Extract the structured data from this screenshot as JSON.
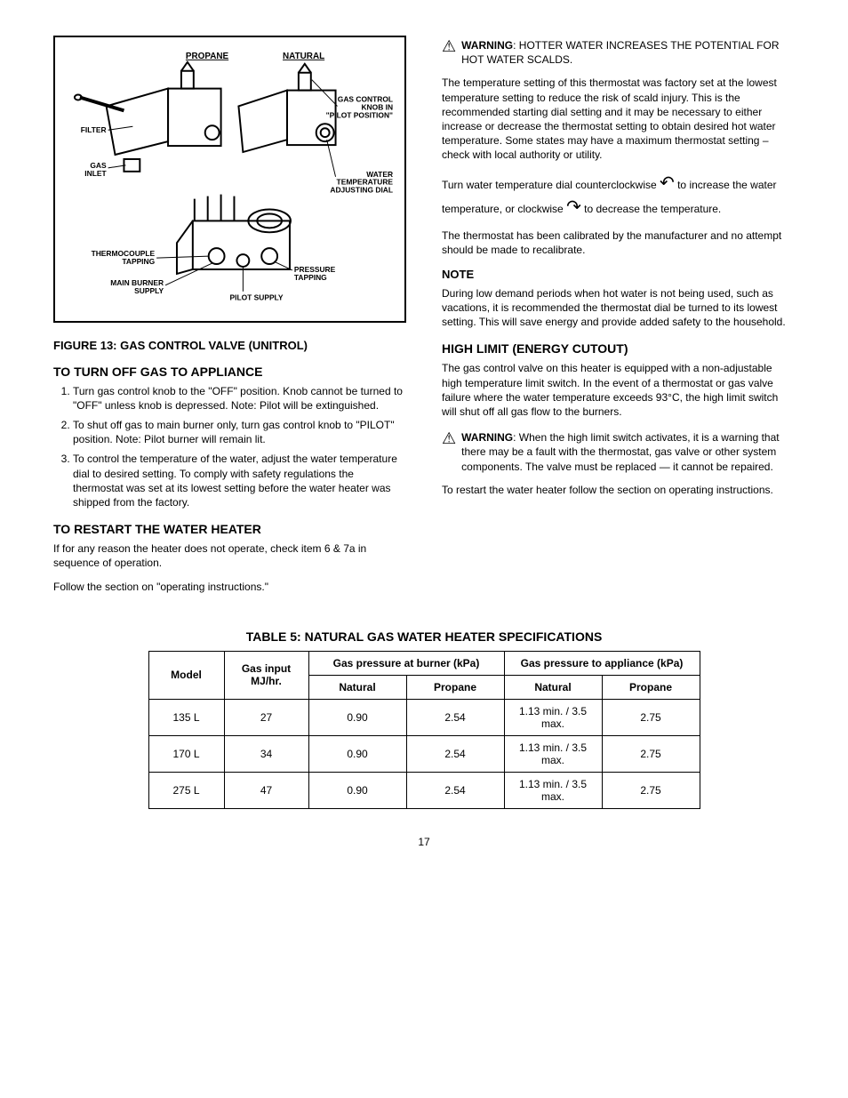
{
  "diagram": {
    "title_left": "PROPANE",
    "title_right": "NATURAL",
    "labels": {
      "filter": "FILTER",
      "gas_inlet": "GAS\nINLET",
      "knob": "GAS CONTROL\nKNOB IN\n\"PILOT POSITION\"",
      "dial": "WATER\nTEMPERATURE\nADJUSTING DIAL",
      "tc": "THERMOCOUPLE\nTAPPING",
      "burner": "MAIN BURNER\nSUPPLY",
      "pilot": "PILOT SUPPLY",
      "pressure": "PRESSURE\nTAPPING"
    }
  },
  "figure_caption": "FIGURE 13: GAS CONTROL VALVE (UNITROL)",
  "left_heading": "TO TURN OFF GAS TO APPLIANCE",
  "left_steps": [
    "Turn gas control knob to the \"OFF\" position. Knob cannot be turned to \"OFF\" unless knob is depressed. Note: Pilot will be extinguished.",
    "To shut off gas to main burner only, turn gas control knob to \"PILOT\" position. Note: Pilot burner will remain lit.",
    "To control the temperature of the water, adjust the water temperature dial to desired setting. To comply with safety regulations the thermostat was set at its lowest setting before the water heater was shipped from the factory."
  ],
  "left_heading2": "TO RESTART THE WATER HEATER",
  "left_p1": "If for any reason the heater does not operate, check item 6 & 7a in sequence of operation.",
  "left_p2": "Follow the section on \"operating instructions.\"",
  "right_warn1_label": "WARNING",
  "right_warn1_body": ": HOTTER WATER INCREASES THE POTENTIAL FOR HOT WATER SCALDS.",
  "right_p1": "The temperature setting of this thermostat was factory set at the lowest temperature setting to reduce the risk of scald injury. This is the recommended starting dial setting and it may be necessary to either increase or decrease the thermostat setting to obtain desired hot water temperature. Some states may have a maximum thermostat setting – check with local authority or utility.",
  "right_p2_1": "Turn water temperature dial counterclockwise ",
  "right_p2_2": " to increase the water temperature, or clockwise ",
  "right_p2_3": " to decrease the temperature.",
  "right_p3": "The thermostat has been calibrated by the manufacturer and no attempt should be made to recalibrate.",
  "note_head": "NOTE",
  "note_body": "During low demand periods when hot water is not being used, such as vacations, it is recommended the thermostat dial be turned to its lowest setting. This will save energy and provide added safety to the household.",
  "right_heading": "HIGH LIMIT (ENERGY CUTOUT)",
  "right_p4": "The gas control valve on this heater is equipped with a non-adjustable high temperature limit switch. In the event of a thermostat or gas valve failure where the water temperature exceeds 93°C, the high limit switch will shut off all gas flow to the burners.",
  "right_warn2_label": "WARNING",
  "right_warn2_body": ": When the high limit switch activates, it is a warning that there may be a fault with the thermostat, gas valve or other system components. The valve must be replaced — it cannot be repaired.",
  "right_p5": "To restart the water heater follow the section on operating instructions.",
  "table_title": "TABLE 5: NATURAL GAS WATER HEATER SPECIFICATIONS",
  "table": {
    "colgroup_widths": [
      85,
      95,
      110,
      110,
      110,
      110
    ],
    "header1": [
      {
        "text": "Model",
        "rowspan": 2
      },
      {
        "text": "Gas input\nMJ/hr.",
        "rowspan": 2
      },
      {
        "text": "Gas pressure at burner (kPa)",
        "colspan": 2
      },
      {
        "text": "Gas pressure to appliance (kPa)",
        "colspan": 2
      }
    ],
    "header2": [
      "Natural",
      "Propane",
      "Natural",
      "Propane"
    ],
    "rows": [
      [
        "135 L",
        "27",
        "0.90",
        "2.54",
        "1.13 min. / 3.5 max.",
        "2.75"
      ],
      [
        "170 L",
        "34",
        "0.90",
        "2.54",
        "1.13 min. / 3.5 max.",
        "2.75"
      ],
      [
        "275 L",
        "47",
        "0.90",
        "2.54",
        "1.13 min. / 3.5 max.",
        "2.75"
      ]
    ]
  },
  "page_number": "17"
}
